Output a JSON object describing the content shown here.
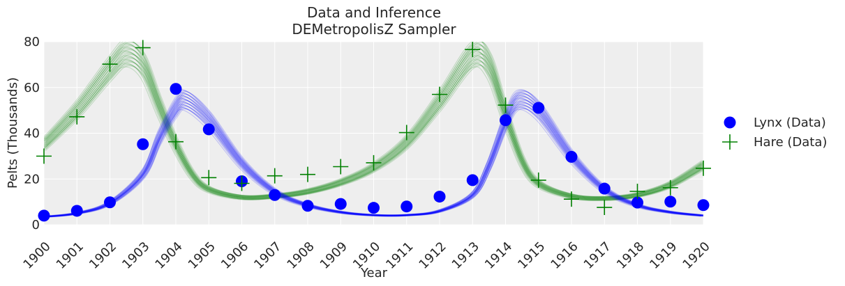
{
  "chart_data": {
    "type": "line",
    "title": "Data and Inference",
    "subtitle": "DEMetropolisZ Sampler",
    "xlabel": "Year",
    "ylabel": "Pelts (Thousands)",
    "xlim": [
      1900,
      1920
    ],
    "ylim": [
      0,
      80
    ],
    "x_ticks": [
      1900,
      1901,
      1902,
      1903,
      1904,
      1905,
      1906,
      1907,
      1908,
      1909,
      1910,
      1911,
      1912,
      1913,
      1914,
      1915,
      1916,
      1917,
      1918,
      1919,
      1920
    ],
    "y_ticks": [
      0,
      20,
      40,
      60,
      80
    ],
    "grid": true,
    "legend_position": "right",
    "series": [
      {
        "name": "Lynx (Data)",
        "marker": "circle",
        "color": "#0000ff",
        "x": [
          1900,
          1901,
          1902,
          1903,
          1904,
          1905,
          1906,
          1907,
          1908,
          1909,
          1910,
          1911,
          1912,
          1913,
          1914,
          1915,
          1916,
          1917,
          1918,
          1919,
          1920
        ],
        "values": [
          4.0,
          6.1,
          9.8,
          35.2,
          59.4,
          41.7,
          19.0,
          13.0,
          8.3,
          9.1,
          7.4,
          8.0,
          12.3,
          19.5,
          45.7,
          51.1,
          29.7,
          15.8,
          9.7,
          10.1,
          8.6
        ]
      },
      {
        "name": "Hare (Data)",
        "marker": "plus",
        "color": "#008000",
        "x": [
          1900,
          1901,
          1902,
          1903,
          1904,
          1905,
          1906,
          1907,
          1908,
          1909,
          1910,
          1911,
          1912,
          1913,
          1914,
          1915,
          1916,
          1917,
          1918,
          1919,
          1920
        ],
        "values": [
          30.0,
          47.2,
          70.2,
          77.4,
          36.3,
          20.6,
          18.1,
          21.4,
          22.0,
          25.4,
          27.1,
          40.3,
          57.0,
          76.6,
          52.3,
          19.5,
          11.2,
          7.6,
          14.6,
          16.2,
          24.7
        ]
      }
    ],
    "posterior_curves": {
      "lynx_color": "#0000ff",
      "hare_color": "#008000",
      "lynx_mean_x": [
        1900,
        1901,
        1902,
        1903,
        1903.5,
        1904,
        1904.3,
        1905,
        1906,
        1907,
        1908,
        1909,
        1910,
        1911,
        1912,
        1913,
        1913.5,
        1914,
        1914.4,
        1915,
        1916,
        1917,
        1918,
        1919,
        1920
      ],
      "lynx_mean_y": [
        3.5,
        5.0,
        9.5,
        22.0,
        38.0,
        51.0,
        54.5,
        46.0,
        27.0,
        14.5,
        8.5,
        5.5,
        4.2,
        4.2,
        6.0,
        13.0,
        26.0,
        45.0,
        54.5,
        50.0,
        30.0,
        15.5,
        8.5,
        5.5,
        4.0
      ],
      "hare_mean_x": [
        1900,
        1901,
        1902,
        1902.5,
        1903,
        1903.5,
        1904,
        1904.5,
        1905,
        1906,
        1907,
        1908,
        1909,
        1910,
        1911,
        1912,
        1913,
        1913.5,
        1914,
        1914.5,
        1915,
        1916,
        1917,
        1918,
        1919,
        1920
      ],
      "hare_mean_y": [
        35.0,
        50.0,
        68.0,
        75.0,
        70.0,
        52.0,
        35.0,
        22.0,
        15.5,
        12.0,
        12.5,
        14.5,
        18.5,
        25.0,
        36.0,
        54.0,
        74.0,
        70.0,
        48.0,
        28.0,
        18.0,
        12.5,
        11.5,
        13.0,
        17.5,
        26.0
      ]
    }
  }
}
